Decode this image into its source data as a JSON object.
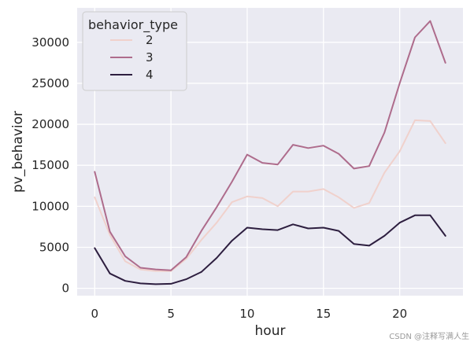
{
  "chart_data": {
    "type": "line",
    "xlabel": "hour",
    "ylabel": "pv_behavior",
    "xlim": [
      -1.15,
      24.15
    ],
    "ylim": [
      -900,
      34200
    ],
    "xticks": [
      0,
      5,
      10,
      15,
      20
    ],
    "yticks": [
      0,
      5000,
      10000,
      15000,
      20000,
      25000,
      30000
    ],
    "grid": true,
    "background": "#eaeaf2",
    "legend": {
      "title": "behavior_type",
      "placement": "top-left"
    },
    "x": [
      0,
      1,
      2,
      3,
      4,
      5,
      6,
      7,
      8,
      9,
      10,
      11,
      12,
      13,
      14,
      15,
      16,
      17,
      18,
      19,
      20,
      21,
      22,
      23
    ],
    "series": [
      {
        "name": "2",
        "color": "#f0d1cc",
        "values": [
          11100,
          6500,
          3300,
          2300,
          2100,
          2100,
          3600,
          5900,
          8000,
          10500,
          11200,
          11000,
          10000,
          11800,
          11800,
          12100,
          11100,
          9800,
          10400,
          14100,
          16700,
          20500,
          20400,
          17700
        ]
      },
      {
        "name": "3",
        "color": "#ae6c8c",
        "values": [
          14200,
          6900,
          3900,
          2500,
          2300,
          2200,
          3800,
          7000,
          9900,
          13000,
          16300,
          15300,
          15100,
          17500,
          17100,
          17400,
          16400,
          14600,
          14900,
          19000,
          25000,
          30600,
          32600,
          27500
        ]
      },
      {
        "name": "4",
        "color": "#2d1e3f",
        "values": [
          4900,
          1800,
          900,
          600,
          500,
          550,
          1100,
          2000,
          3700,
          5800,
          7400,
          7200,
          7100,
          7800,
          7300,
          7400,
          7000,
          5400,
          5200,
          6400,
          8000,
          8900,
          8900,
          6400
        ]
      }
    ]
  },
  "watermark": "CSDN @注释写满人生"
}
